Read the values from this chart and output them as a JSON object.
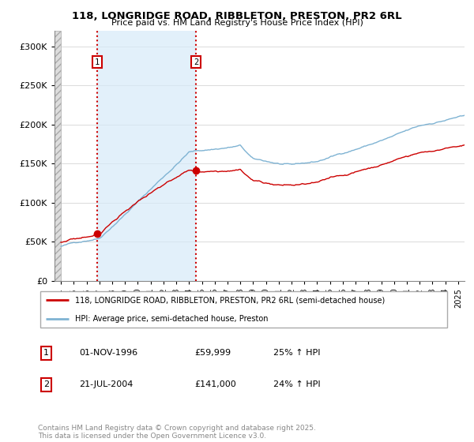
{
  "title1": "118, LONGRIDGE ROAD, RIBBLETON, PRESTON, PR2 6RL",
  "title2": "Price paid vs. HM Land Registry's House Price Index (HPI)",
  "legend_line1": "118, LONGRIDGE ROAD, RIBBLETON, PRESTON, PR2 6RL (semi-detached house)",
  "legend_line2": "HPI: Average price, semi-detached house, Preston",
  "sale1_label": "1",
  "sale1_date": "01-NOV-1996",
  "sale1_price": "£59,999",
  "sale1_hpi": "25% ↑ HPI",
  "sale2_label": "2",
  "sale2_date": "21-JUL-2004",
  "sale2_price": "£141,000",
  "sale2_hpi": "24% ↑ HPI",
  "footer": "Contains HM Land Registry data © Crown copyright and database right 2025.\nThis data is licensed under the Open Government Licence v3.0.",
  "price_color": "#cc0000",
  "hpi_color": "#7fb3d3",
  "shade_color": "#d6eaf8",
  "hatch_color": "#cccccc",
  "ylim_max": 320000,
  "yticks": [
    0,
    50000,
    100000,
    150000,
    200000,
    250000,
    300000
  ],
  "sale1_x": 1996.83,
  "sale1_y": 59999,
  "sale2_x": 2004.55,
  "sale2_y": 141000,
  "xmin": 1993.5,
  "xmax": 2025.5,
  "hpi_start_x": 1994.0,
  "hatch_end_x": 1994.0
}
